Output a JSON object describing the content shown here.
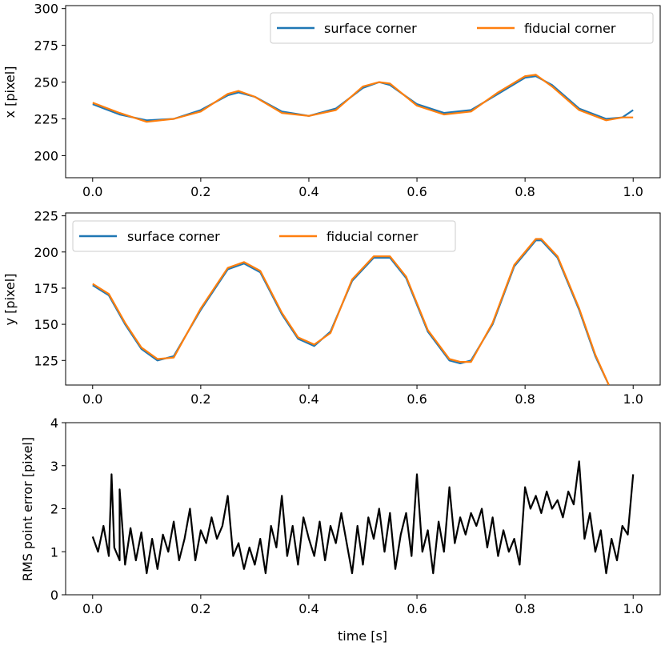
{
  "chart_data": [
    {
      "type": "line",
      "ylabel": "x [pixel]",
      "xlabel": "",
      "xlim": [
        -0.05,
        1.05
      ],
      "ylim": [
        185,
        302
      ],
      "xticks": [
        "0.0",
        "0.2",
        "0.4",
        "0.6",
        "0.8",
        "1.0"
      ],
      "xtick_values": [
        0.0,
        0.2,
        0.4,
        0.6,
        0.8,
        1.0
      ],
      "yticks": [
        "200",
        "225",
        "250",
        "275",
        "300"
      ],
      "ytick_values": [
        200,
        225,
        250,
        275,
        300
      ],
      "legend_position": "top-right",
      "series": [
        {
          "name": "surface corner",
          "color": "#1f77b4",
          "x": [
            0.0,
            0.05,
            0.1,
            0.15,
            0.2,
            0.25,
            0.27,
            0.3,
            0.35,
            0.4,
            0.45,
            0.5,
            0.53,
            0.55,
            0.6,
            0.65,
            0.7,
            0.75,
            0.8,
            0.82,
            0.85,
            0.9,
            0.95,
            0.98,
            1.0
          ],
          "values": [
            235,
            228,
            224,
            225,
            231,
            241,
            243,
            240,
            230,
            227,
            232,
            246,
            250,
            248,
            235,
            229,
            231,
            242,
            253,
            254,
            248,
            232,
            225,
            226,
            231
          ]
        },
        {
          "name": "fiducial corner",
          "color": "#ff7f0e",
          "x": [
            0.0,
            0.05,
            0.1,
            0.15,
            0.2,
            0.25,
            0.27,
            0.3,
            0.35,
            0.4,
            0.45,
            0.5,
            0.53,
            0.55,
            0.6,
            0.65,
            0.7,
            0.75,
            0.8,
            0.82,
            0.85,
            0.9,
            0.95,
            0.98,
            1.0
          ],
          "values": [
            236,
            229,
            223,
            225,
            230,
            242,
            244,
            240,
            229,
            227,
            231,
            247,
            250,
            249,
            234,
            228,
            230,
            243,
            254,
            255,
            247,
            231,
            224,
            226,
            226
          ]
        }
      ]
    },
    {
      "type": "line",
      "ylabel": "y [pixel]",
      "xlabel": "",
      "xlim": [
        -0.05,
        1.05
      ],
      "ylim": [
        108,
        227
      ],
      "xticks": [
        "0.0",
        "0.2",
        "0.4",
        "0.6",
        "0.8",
        "1.0"
      ],
      "xtick_values": [
        0.0,
        0.2,
        0.4,
        0.6,
        0.8,
        1.0
      ],
      "yticks": [
        "125",
        "150",
        "175",
        "200",
        "225"
      ],
      "ytick_values": [
        125,
        150,
        175,
        200,
        225
      ],
      "legend_position": "top-left",
      "series": [
        {
          "name": "surface corner",
          "color": "#1f77b4",
          "x": [
            0.0,
            0.03,
            0.06,
            0.09,
            0.12,
            0.15,
            0.2,
            0.25,
            0.28,
            0.31,
            0.35,
            0.38,
            0.41,
            0.44,
            0.48,
            0.52,
            0.55,
            0.58,
            0.62,
            0.66,
            0.68,
            0.7,
            0.74,
            0.78,
            0.82,
            0.83,
            0.86,
            0.9,
            0.93,
            0.955
          ],
          "values": [
            177,
            170,
            150,
            133,
            125,
            128,
            160,
            188,
            192,
            186,
            157,
            140,
            135,
            145,
            180,
            196,
            196,
            182,
            145,
            125,
            123,
            125,
            150,
            190,
            208,
            208,
            196,
            160,
            128,
            108
          ]
        },
        {
          "name": "fiducial corner",
          "color": "#ff7f0e",
          "x": [
            0.0,
            0.03,
            0.06,
            0.09,
            0.12,
            0.15,
            0.2,
            0.25,
            0.28,
            0.31,
            0.35,
            0.38,
            0.41,
            0.44,
            0.48,
            0.52,
            0.55,
            0.58,
            0.62,
            0.66,
            0.68,
            0.7,
            0.74,
            0.78,
            0.82,
            0.83,
            0.86,
            0.9,
            0.93,
            0.955
          ],
          "values": [
            178,
            171,
            151,
            134,
            126,
            127,
            161,
            189,
            193,
            187,
            158,
            141,
            136,
            144,
            181,
            197,
            197,
            183,
            146,
            126,
            124,
            124,
            151,
            191,
            209,
            209,
            197,
            161,
            129,
            108
          ]
        }
      ]
    },
    {
      "type": "line",
      "ylabel": "RMS point error [pixel]",
      "xlabel": "time [s]",
      "xlim": [
        -0.05,
        1.05
      ],
      "ylim": [
        0,
        4
      ],
      "xticks": [
        "0.0",
        "0.2",
        "0.4",
        "0.6",
        "0.8",
        "1.0"
      ],
      "xtick_values": [
        0.0,
        0.2,
        0.4,
        0.6,
        0.8,
        1.0
      ],
      "yticks": [
        "0",
        "1",
        "2",
        "3",
        "4"
      ],
      "ytick_values": [
        0,
        1,
        2,
        3,
        4
      ],
      "series": [
        {
          "name": "RMS point error",
          "color": "#000000",
          "x": [
            0.0,
            0.01,
            0.02,
            0.03,
            0.035,
            0.04,
            0.05,
            0.05,
            0.06,
            0.07,
            0.08,
            0.09,
            0.1,
            0.11,
            0.12,
            0.13,
            0.14,
            0.15,
            0.16,
            0.17,
            0.18,
            0.19,
            0.2,
            0.21,
            0.22,
            0.23,
            0.24,
            0.25,
            0.26,
            0.27,
            0.28,
            0.29,
            0.3,
            0.31,
            0.32,
            0.33,
            0.34,
            0.35,
            0.36,
            0.37,
            0.38,
            0.39,
            0.4,
            0.41,
            0.42,
            0.43,
            0.44,
            0.45,
            0.46,
            0.48,
            0.49,
            0.5,
            0.51,
            0.52,
            0.53,
            0.54,
            0.55,
            0.56,
            0.57,
            0.58,
            0.59,
            0.6,
            0.61,
            0.62,
            0.63,
            0.64,
            0.65,
            0.66,
            0.67,
            0.68,
            0.69,
            0.7,
            0.71,
            0.72,
            0.73,
            0.74,
            0.75,
            0.76,
            0.77,
            0.78,
            0.79,
            0.8,
            0.81,
            0.82,
            0.83,
            0.84,
            0.85,
            0.86,
            0.87,
            0.88,
            0.89,
            0.9,
            0.91,
            0.92,
            0.93,
            0.94,
            0.95,
            0.96,
            0.97,
            0.98,
            0.99,
            1.0
          ],
          "values": [
            1.35,
            1.0,
            1.6,
            0.9,
            2.8,
            1.1,
            0.8,
            2.45,
            0.7,
            1.55,
            0.8,
            1.45,
            0.5,
            1.3,
            0.6,
            1.4,
            1.0,
            1.7,
            0.8,
            1.3,
            2.0,
            0.8,
            1.5,
            1.2,
            1.8,
            1.3,
            1.6,
            2.3,
            0.9,
            1.2,
            0.6,
            1.1,
            0.7,
            1.3,
            0.5,
            1.6,
            1.1,
            2.3,
            0.9,
            1.6,
            0.7,
            1.8,
            1.3,
            0.9,
            1.7,
            0.8,
            1.6,
            1.2,
            1.9,
            0.5,
            1.6,
            0.7,
            1.8,
            1.3,
            2.0,
            1.0,
            1.9,
            0.6,
            1.4,
            1.9,
            0.9,
            2.8,
            1.0,
            1.5,
            0.5,
            1.7,
            1.0,
            2.5,
            1.2,
            1.8,
            1.4,
            1.9,
            1.6,
            2.0,
            1.1,
            1.8,
            0.9,
            1.5,
            1.0,
            1.3,
            0.7,
            2.5,
            2.0,
            2.3,
            1.9,
            2.4,
            2.0,
            2.2,
            1.8,
            2.4,
            2.1,
            3.1,
            1.3,
            1.9,
            1.0,
            1.5,
            0.5,
            1.3,
            0.8,
            1.6,
            1.4,
            2.8
          ]
        }
      ]
    }
  ]
}
